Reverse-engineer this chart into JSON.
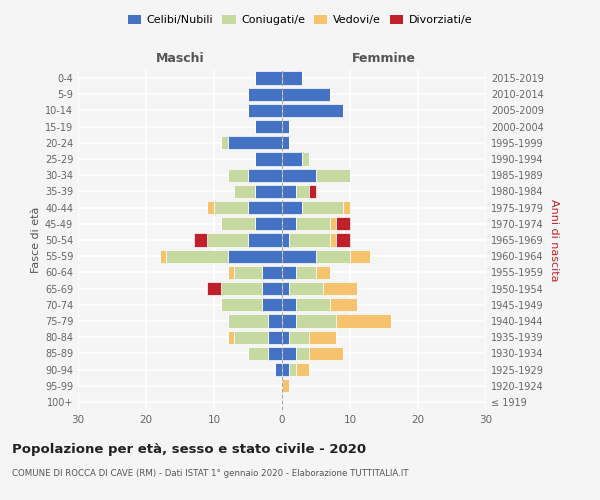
{
  "age_groups": [
    "100+",
    "95-99",
    "90-94",
    "85-89",
    "80-84",
    "75-79",
    "70-74",
    "65-69",
    "60-64",
    "55-59",
    "50-54",
    "45-49",
    "40-44",
    "35-39",
    "30-34",
    "25-29",
    "20-24",
    "15-19",
    "10-14",
    "5-9",
    "0-4"
  ],
  "birth_years": [
    "≤ 1919",
    "1920-1924",
    "1925-1929",
    "1930-1934",
    "1935-1939",
    "1940-1944",
    "1945-1949",
    "1950-1954",
    "1955-1959",
    "1960-1964",
    "1965-1969",
    "1970-1974",
    "1975-1979",
    "1980-1984",
    "1985-1989",
    "1990-1994",
    "1995-1999",
    "2000-2004",
    "2005-2009",
    "2010-2014",
    "2015-2019"
  ],
  "colors": {
    "celibi": "#4472c4",
    "coniugati": "#c5d9a0",
    "vedovi": "#f5c36e",
    "divorziati": "#c0202a"
  },
  "males": {
    "celibi": [
      0,
      0,
      1,
      2,
      2,
      2,
      3,
      3,
      3,
      8,
      5,
      4,
      5,
      4,
      5,
      4,
      8,
      4,
      5,
      5,
      4
    ],
    "coniugati": [
      0,
      0,
      0,
      3,
      5,
      6,
      6,
      6,
      4,
      9,
      6,
      5,
      5,
      3,
      3,
      0,
      1,
      0,
      0,
      0,
      0
    ],
    "vedovi": [
      0,
      0,
      0,
      0,
      1,
      0,
      0,
      0,
      1,
      1,
      0,
      0,
      1,
      0,
      0,
      0,
      0,
      0,
      0,
      0,
      0
    ],
    "divorziati": [
      0,
      0,
      0,
      0,
      0,
      0,
      0,
      2,
      0,
      0,
      2,
      0,
      0,
      0,
      0,
      0,
      0,
      0,
      0,
      0,
      0
    ]
  },
  "females": {
    "celibi": [
      0,
      0,
      1,
      2,
      1,
      2,
      2,
      1,
      2,
      5,
      1,
      2,
      3,
      2,
      5,
      3,
      1,
      1,
      9,
      7,
      3
    ],
    "coniugati": [
      0,
      0,
      1,
      2,
      3,
      6,
      5,
      5,
      3,
      5,
      6,
      5,
      6,
      2,
      5,
      1,
      0,
      0,
      0,
      0,
      0
    ],
    "vedovi": [
      0,
      1,
      2,
      5,
      4,
      8,
      4,
      5,
      2,
      3,
      1,
      1,
      1,
      0,
      0,
      0,
      0,
      0,
      0,
      0,
      0
    ],
    "divorziati": [
      0,
      0,
      0,
      0,
      0,
      0,
      0,
      0,
      0,
      0,
      2,
      2,
      0,
      1,
      0,
      0,
      0,
      0,
      0,
      0,
      0
    ]
  },
  "xlim": [
    -30,
    30
  ],
  "xticks": [
    -30,
    -20,
    -10,
    0,
    10,
    20,
    30
  ],
  "xticklabels": [
    "30",
    "20",
    "10",
    "0",
    "10",
    "20",
    "30"
  ],
  "title": "Popolazione per età, sesso e stato civile - 2020",
  "subtitle": "COMUNE DI ROCCA DI CAVE (RM) - Dati ISTAT 1° gennaio 2020 - Elaborazione TUTTITALIA.IT",
  "ylabel_left": "Fasce di età",
  "ylabel_right": "Anni di nascita",
  "maschi_label": "Maschi",
  "femmine_label": "Femmine",
  "bg_color": "#f5f5f5",
  "bar_height": 0.82
}
